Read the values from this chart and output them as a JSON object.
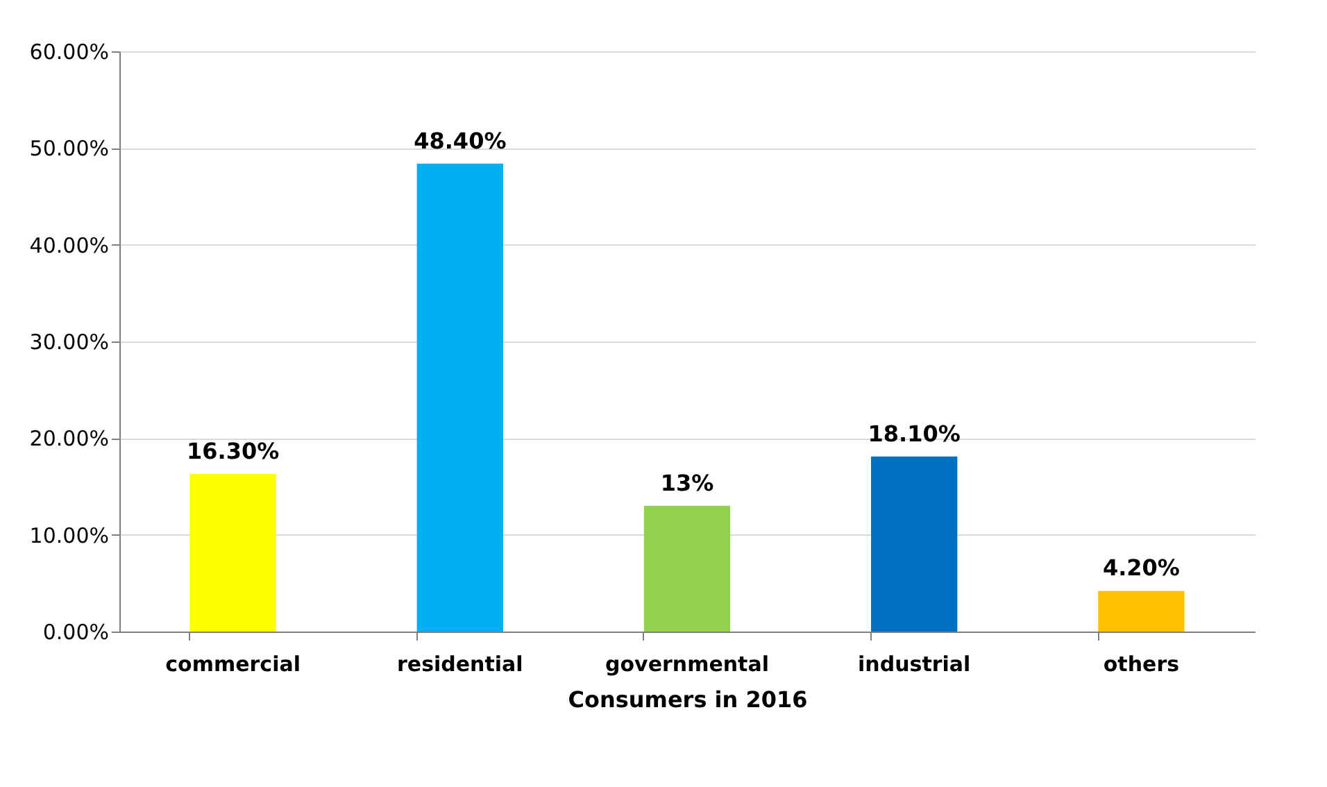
{
  "chart_data": {
    "type": "bar",
    "xlabel": "Consumers in 2016",
    "categories": [
      "commercial",
      "residential",
      "governmental",
      "industrial",
      "others"
    ],
    "values": [
      16.3,
      48.4,
      13,
      18.1,
      4.2
    ],
    "colors": [
      "#ffff00",
      "#00b0f0",
      "#92d050",
      "#0070c0",
      "#ffc000"
    ],
    "value_labels": [
      "16.30%",
      "48.40%",
      "13%",
      "18.10%",
      "4.20%"
    ],
    "ylim": [
      0,
      60
    ],
    "yticks": [
      {
        "value": 0,
        "label": "0.00%"
      },
      {
        "value": 10,
        "label": "10.00%"
      },
      {
        "value": 20,
        "label": "20.00%"
      },
      {
        "value": 30,
        "label": "30.00%"
      },
      {
        "value": 40,
        "label": "40.00%"
      },
      {
        "value": 50,
        "label": "50.00%"
      },
      {
        "value": 60,
        "label": "60.00%"
      }
    ],
    "grid": "y"
  }
}
